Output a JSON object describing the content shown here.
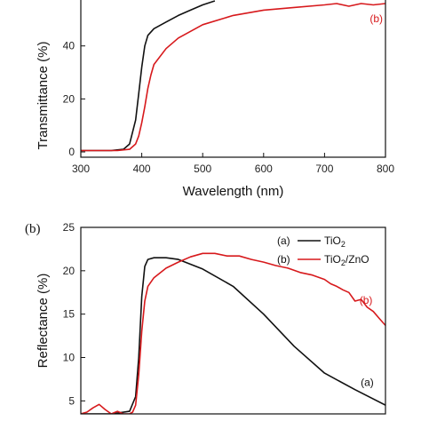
{
  "chart_data": [
    {
      "type": "line",
      "panel": "",
      "xlabel": "Wavelength (nm)",
      "ylabel": "Transmittance (%)",
      "xlim": [
        300,
        800
      ],
      "ylim": [
        -2,
        58
      ],
      "xticks": [
        300,
        400,
        500,
        600,
        700,
        800
      ],
      "yticks": [
        0,
        20,
        40
      ],
      "grid": false,
      "series": [
        {
          "name": "",
          "color": "#111111",
          "x": [
            300,
            350,
            370,
            380,
            390,
            395,
            400,
            405,
            410,
            420,
            440,
            460,
            480,
            500,
            520
          ],
          "y": [
            0.5,
            0.5,
            1,
            3,
            12,
            22,
            32,
            40,
            44,
            46.5,
            49,
            51.5,
            53.5,
            55.5,
            57
          ]
        },
        {
          "name": "",
          "color": "#d7191c",
          "x": [
            300,
            360,
            380,
            390,
            395,
            400,
            405,
            410,
            415,
            420,
            440,
            460,
            480,
            500,
            550,
            600,
            650,
            700,
            720,
            740,
            760,
            780,
            800
          ],
          "y": [
            0.5,
            0.5,
            1,
            3,
            6,
            11,
            17,
            24,
            29,
            33,
            39,
            43,
            45.5,
            48,
            51.5,
            53.5,
            54.5,
            55.5,
            56,
            55,
            56,
            55.5,
            56
          ]
        }
      ],
      "annotations": [
        {
          "text": "(b)",
          "x": 785,
          "y": 49,
          "color": "#d7191c"
        }
      ]
    },
    {
      "type": "line",
      "panel": "(b)",
      "xlabel": "",
      "ylabel": "Reflectance (%)",
      "xlim": [
        300,
        800
      ],
      "ylim": [
        3.5,
        25
      ],
      "yticks": [
        5,
        10,
        15,
        20,
        25
      ],
      "grid": false,
      "legend": "top-right",
      "series": [
        {
          "name_prefix": "(a)",
          "name": "TiO",
          "name_sub": "2",
          "name_suffix": "",
          "color": "#111111",
          "x": [
            300,
            310,
            330,
            350,
            380,
            390,
            395,
            400,
            405,
            410,
            420,
            440,
            460,
            500,
            550,
            600,
            650,
            700,
            750,
            800
          ],
          "y": [
            3.5,
            3.5,
            3.5,
            3.5,
            3.8,
            5.5,
            10,
            17,
            20.5,
            21.3,
            21.5,
            21.5,
            21.3,
            20.2,
            18.2,
            15,
            11.3,
            8.2,
            6.3,
            4.5
          ]
        },
        {
          "name_prefix": "(b)",
          "name": "TiO",
          "name_sub": "2",
          "name_suffix": "/ZnO",
          "color": "#d7191c",
          "x": [
            300,
            310,
            320,
            330,
            340,
            350,
            360,
            370,
            380,
            385,
            390,
            395,
            400,
            405,
            410,
            420,
            440,
            460,
            480,
            500,
            520,
            540,
            560,
            580,
            600,
            620,
            640,
            660,
            680,
            700,
            710,
            720,
            730,
            740,
            750,
            760,
            770,
            780,
            790,
            800
          ],
          "y": [
            3.5,
            3.7,
            4.2,
            4.6,
            4.0,
            3.5,
            3.8,
            3.5,
            3.5,
            3.7,
            4.5,
            8,
            13,
            16.5,
            18.2,
            19.2,
            20.3,
            21.0,
            21.6,
            22.0,
            22.0,
            21.7,
            21.7,
            21.3,
            21.0,
            20.6,
            20.3,
            19.8,
            19.5,
            19.0,
            18.5,
            18.2,
            17.8,
            17.5,
            16.5,
            16.7,
            15.8,
            15.3,
            14.5,
            13.7
          ]
        }
      ],
      "annotations": [
        {
          "text": "(b)",
          "x": 768,
          "y": 16.2,
          "color": "#d7191c"
        },
        {
          "text": "(a)",
          "x": 770,
          "y": 6.7,
          "color": "#111111"
        }
      ]
    }
  ]
}
